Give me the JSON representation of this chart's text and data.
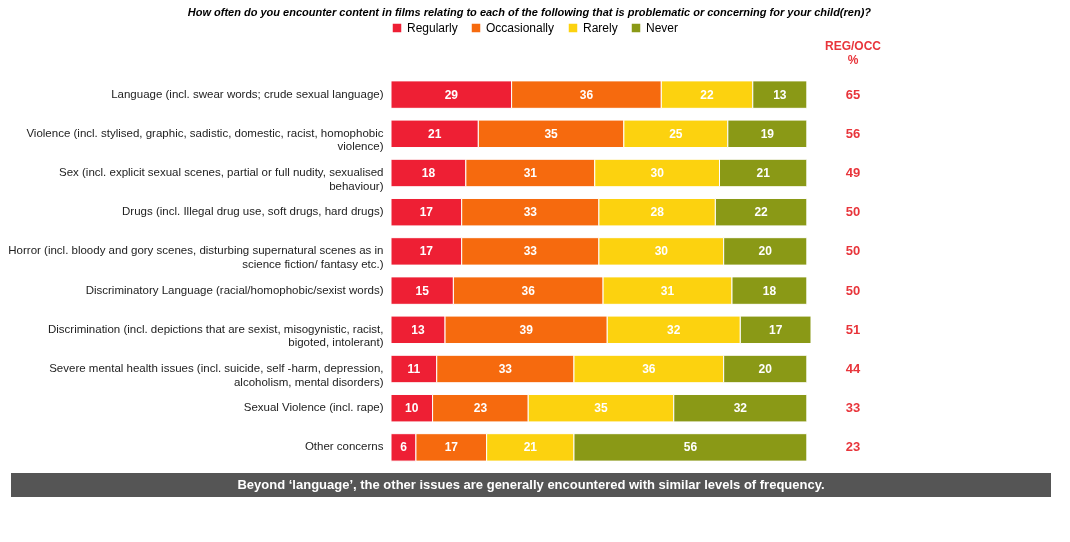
{
  "chart_data": {
    "type": "bar",
    "orientation": "horizontal",
    "stacked": true,
    "data_labels": true,
    "legend": "top",
    "tick_labels": "y",
    "title": "How often do you encounter content in films relating to each of the following that is problematic or concerning for your child(ren)?",
    "categories": [
      "Language (incl. swear words; crude sexual language)",
      "Violence (incl. stylised, graphic, sadistic, domestic, racist, homophobic violence)",
      "Sex (incl. explicit sexual scenes, partial or full nudity, sexualised behaviour)",
      "Drugs (incl. Illegal drug use, soft drugs, hard drugs)",
      "Horror (incl. bloody and gory scenes, disturbing supernatural scenes as in science fiction/ fantasy etc.)",
      "Discriminatory Language (racial/homophobic/sexist words)",
      "Discrimination (incl. depictions that are sexist, misogynistic, racist, bigoted, intolerant)",
      "Severe mental health issues (incl. suicide, self -harm, depression, alcoholism, mental disorders)",
      "Sexual Violence (incl. rape)",
      "Other concerns"
    ],
    "series": [
      {
        "name": "Regularly",
        "color": "#ee1f34",
        "values": [
          29,
          21,
          18,
          17,
          17,
          15,
          13,
          11,
          10,
          6
        ]
      },
      {
        "name": "Occasionally",
        "color": "#f66a0e",
        "values": [
          36,
          35,
          31,
          33,
          33,
          36,
          39,
          33,
          23,
          17
        ]
      },
      {
        "name": "Rarely",
        "color": "#fcd20f",
        "values": [
          22,
          25,
          30,
          28,
          30,
          31,
          32,
          36,
          35,
          21
        ]
      },
      {
        "name": "Never",
        "color": "#8a9916",
        "values": [
          13,
          19,
          21,
          22,
          20,
          18,
          17,
          20,
          32,
          56
        ]
      }
    ],
    "annotations": [
      "REG/OCC",
      "%",
      "65",
      "56",
      "49",
      "50",
      "50",
      "50",
      "51",
      "44",
      "33",
      "23",
      "Beyond ‘language’, the other issues are generally encountered with similar levels of frequency."
    ]
  }
}
